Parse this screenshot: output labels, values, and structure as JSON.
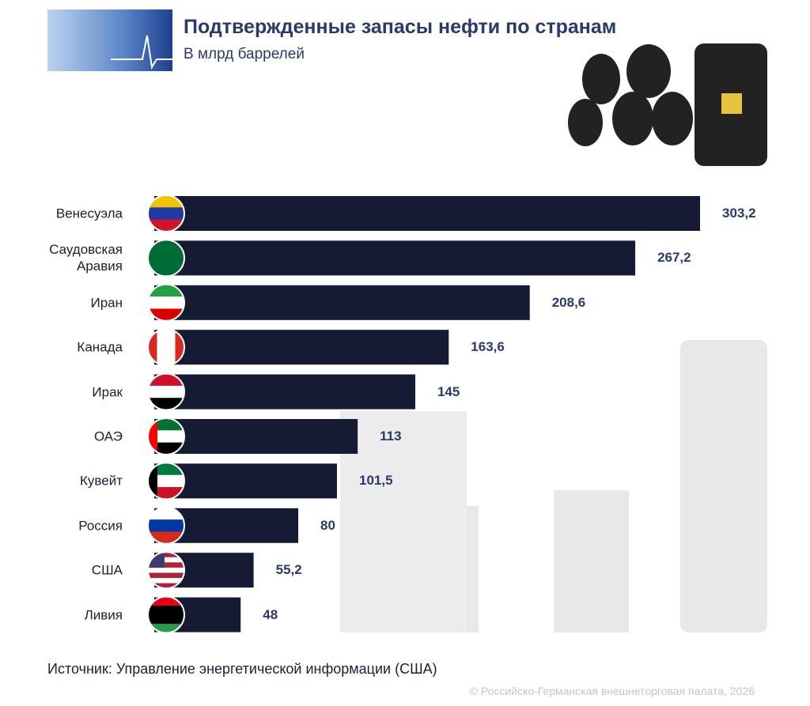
{
  "chart_data": {
    "type": "bar",
    "orientation": "horizontal",
    "title": "Подтвержденные запасы нефти по странам",
    "subtitle": "В млрд баррелей",
    "categories": [
      "Венесуэла",
      "Саудовская Аравия",
      "Иран",
      "Канада",
      "Ирак",
      "ОАЭ",
      "Кувейт",
      "Россия",
      "США",
      "Ливия"
    ],
    "values": [
      303.2,
      267.2,
      208.6,
      163.6,
      145,
      113,
      101.5,
      80,
      55.2,
      48
    ],
    "value_labels": [
      "303,2",
      "267,2",
      "208,6",
      "163,6",
      "145",
      "113",
      "101,5",
      "80",
      "55,2",
      "48"
    ],
    "color": "#141b33",
    "source": "Источник: Управление энергетической информации (США)",
    "copyright": "© Российско-Германская внешнеторговая палата, 2026"
  }
}
